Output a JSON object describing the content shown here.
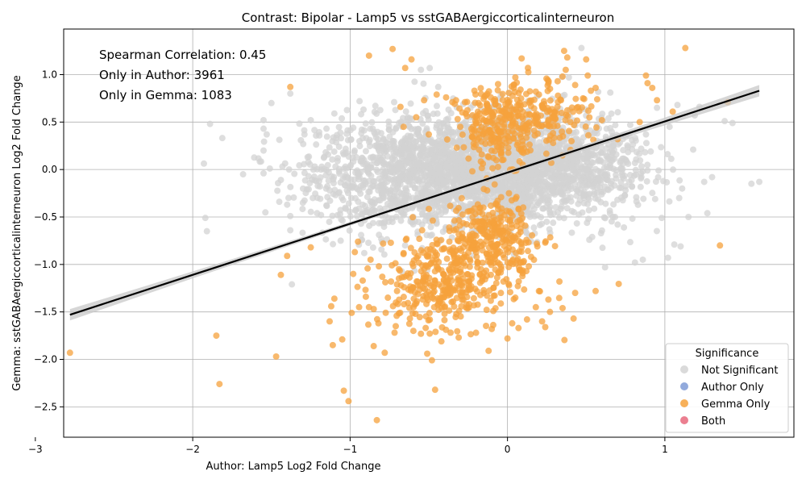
{
  "chart_data": {
    "type": "scatter",
    "title": "Contrast: Bipolar - Lamp5 vs sstGABAergiccorticalinterneuron",
    "xlabel": "Author: Lamp5 Log2 Fold Change",
    "ylabel": "Gemma: sstGABAergiccorticalinterneuron Log2 Fold Change",
    "xlim": [
      -2.82,
      1.82
    ],
    "ylim": [
      -2.82,
      1.48
    ],
    "xticks": [
      -3,
      -2,
      -1,
      0,
      1
    ],
    "xtick_labels": [
      "−3",
      "−2",
      "−1",
      "0",
      "1"
    ],
    "yticks": [
      -2.5,
      -2.0,
      -1.5,
      -1.0,
      -0.5,
      0.0,
      0.5,
      1.0
    ],
    "ytick_labels": [
      "−2.5",
      "−2.0",
      "−1.5",
      "−1.0",
      "−0.5",
      "0.0",
      "0.5",
      "1.0"
    ],
    "grid": true,
    "annotations": [
      "Spearman Correlation: 0.45",
      "Only in Author: 3961",
      "Only in Gemma: 1083"
    ],
    "regression": {
      "x": [
        -2.78,
        1.6
      ],
      "y": [
        -1.53,
        0.83
      ],
      "ci_halfwidth_end": 0.06,
      "ci_halfwidth_mid": 0.02
    },
    "legend": {
      "title": "Significance",
      "placement": "lower-right",
      "entries": [
        {
          "label": "Not Significant",
          "color": "#d3d3d3"
        },
        {
          "label": "Author Only",
          "color": "#7f9bd6"
        },
        {
          "label": "Gemma Only",
          "color": "#f6a23c"
        },
        {
          "label": "Both",
          "color": "#e8697c"
        }
      ]
    },
    "series": [
      {
        "name": "Gemma Only",
        "color": "#f6a23c",
        "points": [
          [
            -2.78,
            -1.93
          ],
          [
            -1.85,
            -1.75
          ],
          [
            -1.83,
            -2.26
          ],
          [
            -1.47,
            -1.97
          ],
          [
            -1.38,
            0.87
          ],
          [
            -1.4,
            -0.91
          ],
          [
            -1.44,
            -1.11
          ],
          [
            -1.25,
            -0.82
          ],
          [
            -1.12,
            -1.44
          ],
          [
            -1.11,
            -1.85
          ],
          [
            -1.1,
            -1.36
          ],
          [
            -1.05,
            -1.79
          ],
          [
            -1.04,
            -2.33
          ],
          [
            -1.01,
            -2.44
          ],
          [
            -0.99,
            -1.51
          ],
          [
            -0.88,
            1.2
          ],
          [
            -0.83,
            -2.64
          ],
          [
            -0.73,
            1.27
          ],
          [
            -0.65,
            1.07
          ],
          [
            -0.61,
            1.16
          ],
          [
            -0.46,
            -2.32
          ],
          [
            -0.48,
            -2.01
          ],
          [
            -0.88,
            -1.45
          ],
          [
            -0.85,
            -1.86
          ],
          [
            -0.78,
            -1.93
          ],
          [
            -0.71,
            -1.65
          ],
          [
            -0.62,
            -1.57
          ],
          [
            -0.55,
            -1.73
          ],
          [
            -0.51,
            -1.94
          ],
          [
            -0.42,
            -1.81
          ],
          [
            -0.31,
            -1.77
          ],
          [
            -0.2,
            -1.72
          ],
          [
            -0.12,
            -1.91
          ],
          [
            -0.1,
            -1.68
          ],
          [
            0.0,
            -1.78
          ],
          [
            0.03,
            -1.62
          ],
          [
            0.07,
            -1.67
          ],
          [
            0.22,
            -1.6
          ],
          [
            0.24,
            -1.66
          ],
          [
            0.18,
            -1.45
          ],
          [
            0.27,
            -1.5
          ],
          [
            0.35,
            -1.46
          ],
          [
            0.42,
            -1.57
          ],
          [
            0.56,
            -1.28
          ],
          [
            0.43,
            -1.3
          ],
          [
            0.33,
            -1.18
          ],
          [
            0.26,
            -1.37
          ],
          [
            0.2,
            -1.28
          ],
          [
            0.12,
            -1.07
          ],
          [
            0.15,
            -0.92
          ],
          [
            0.09,
            -0.82
          ],
          [
            0.19,
            -0.81
          ],
          [
            0.24,
            -0.77
          ],
          [
            0.05,
            -0.72
          ],
          [
            0.34,
            0.73
          ],
          [
            0.35,
            0.98
          ],
          [
            0.37,
            1.05
          ],
          [
            0.38,
            1.18
          ],
          [
            0.36,
            1.25
          ],
          [
            0.43,
            0.89
          ],
          [
            0.48,
            0.75
          ],
          [
            0.51,
            0.99
          ],
          [
            0.5,
            1.16
          ],
          [
            0.56,
            0.86
          ],
          [
            0.53,
            0.83
          ],
          [
            0.57,
            0.74
          ],
          [
            0.6,
            0.52
          ],
          [
            0.44,
            0.65
          ],
          [
            0.26,
            0.91
          ],
          [
            0.2,
            0.79
          ],
          [
            0.13,
            1.07
          ],
          [
            0.09,
            1.17
          ],
          [
            0.05,
            0.97
          ],
          [
            0.04,
            0.86
          ],
          [
            -0.02,
            0.6
          ],
          [
            -0.06,
            0.9
          ],
          [
            -0.13,
            0.67
          ],
          [
            -0.21,
            0.83
          ],
          [
            -0.27,
            0.71
          ],
          [
            -0.35,
            0.71
          ],
          [
            -0.39,
            0.76
          ],
          [
            -0.45,
            0.79
          ],
          [
            -0.53,
            0.73
          ],
          [
            -0.58,
            0.55
          ],
          [
            -0.66,
            0.45
          ],
          [
            -0.68,
            0.66
          ],
          [
            0.88,
            0.99
          ],
          [
            0.89,
            0.91
          ],
          [
            0.92,
            0.86
          ],
          [
            0.95,
            0.73
          ],
          [
            1.05,
            0.61
          ],
          [
            1.13,
            1.28
          ],
          [
            1.35,
            -0.8
          ],
          [
            1.4,
            0.71
          ],
          [
            0.84,
            0.5
          ],
          [
            0.7,
            0.32
          ],
          [
            -0.95,
            -0.76
          ],
          [
            -0.87,
            -0.95
          ],
          [
            -0.92,
            -1.17
          ],
          [
            -0.9,
            -1.34
          ],
          [
            -0.85,
            -1.47
          ],
          [
            -0.82,
            -1.62
          ],
          [
            -0.76,
            -1.35
          ],
          [
            -0.74,
            -1.18
          ],
          [
            -0.69,
            -1.05
          ],
          [
            -0.66,
            -0.88
          ],
          [
            -0.6,
            -1.24
          ],
          [
            -0.58,
            -1.41
          ],
          [
            -0.52,
            -1.01
          ],
          [
            -0.49,
            -0.84
          ],
          [
            -0.46,
            -1.2
          ],
          [
            -0.43,
            -1.36
          ],
          [
            -0.4,
            -1.52
          ],
          [
            -0.36,
            -1.3
          ],
          [
            -0.33,
            -0.97
          ],
          [
            -0.29,
            -1.1
          ],
          [
            -0.26,
            -1.42
          ],
          [
            -0.23,
            -1.23
          ],
          [
            -0.19,
            -0.99
          ],
          [
            -0.16,
            -1.15
          ],
          [
            -0.13,
            -1.33
          ],
          [
            -0.09,
            -1.49
          ],
          [
            -0.07,
            -0.89
          ],
          [
            -0.04,
            -1.05
          ],
          [
            0.01,
            -1.22
          ],
          [
            0.05,
            -1.35
          ],
          [
            0.08,
            -0.98
          ],
          [
            -0.98,
            -1.1
          ],
          [
            -1.13,
            -1.6
          ],
          [
            -0.97,
            -0.87
          ],
          [
            -0.79,
            -0.78
          ],
          [
            -0.56,
            -0.73
          ],
          [
            -0.34,
            -0.64
          ],
          [
            -0.18,
            -0.56
          ],
          [
            -0.02,
            -0.48
          ],
          [
            0.1,
            -0.4
          ],
          [
            -0.5,
            0.37
          ],
          [
            -0.3,
            0.45
          ],
          [
            -0.15,
            0.52
          ],
          [
            0.0,
            0.35
          ],
          [
            0.17,
            0.41
          ],
          [
            0.29,
            0.28
          ],
          [
            0.4,
            0.5
          ],
          [
            0.3,
            0.6
          ]
        ],
        "dense_regions": [
          {
            "cx": -0.45,
            "cy": -1.2,
            "sx": 0.18,
            "sy": 0.22,
            "n": 260
          },
          {
            "cx": -0.15,
            "cy": -0.95,
            "sx": 0.2,
            "sy": 0.28,
            "n": 180
          },
          {
            "cx": -0.1,
            "cy": -0.65,
            "sx": 0.1,
            "sy": 0.18,
            "n": 160
          },
          {
            "cx": -0.05,
            "cy": 0.45,
            "sx": 0.13,
            "sy": 0.2,
            "n": 240
          },
          {
            "cx": 0.25,
            "cy": 0.6,
            "sx": 0.14,
            "sy": 0.18,
            "n": 120
          }
        ]
      },
      {
        "name": "Not Significant",
        "color": "#d3d3d3",
        "points": [
          [
            -1.92,
            -0.51
          ],
          [
            -1.91,
            -0.65
          ],
          [
            -1.89,
            0.48
          ],
          [
            -1.68,
            -0.05
          ],
          [
            -1.55,
            -0.04
          ],
          [
            -1.55,
            0.2
          ],
          [
            -1.55,
            0.43
          ],
          [
            -1.55,
            0.52
          ],
          [
            -1.53,
            0.37
          ],
          [
            -1.51,
            0.01
          ],
          [
            -1.5,
            0.7
          ],
          [
            -1.45,
            -0.34
          ],
          [
            -1.44,
            -0.11
          ],
          [
            -1.4,
            -0.37
          ],
          [
            -1.38,
            -0.49
          ],
          [
            -1.38,
            -0.64
          ],
          [
            -1.37,
            -1.21
          ],
          [
            -1.38,
            0.8
          ],
          [
            -1.3,
            -0.35
          ],
          [
            -1.29,
            0.37
          ],
          [
            -1.27,
            0.13
          ],
          [
            -1.25,
            0.52
          ],
          [
            -1.21,
            -0.46
          ],
          [
            -1.18,
            0.03
          ],
          [
            -1.15,
            0.43
          ],
          [
            -1.13,
            -0.22
          ],
          [
            -1.1,
            0.59
          ],
          [
            -1.07,
            0.24
          ],
          [
            -1.06,
            -0.75
          ],
          [
            -1.03,
            0.03
          ],
          [
            -0.98,
            0.44
          ],
          [
            -0.94,
            0.72
          ],
          [
            -0.93,
            -0.69
          ],
          [
            -0.91,
            -0.88
          ],
          [
            -0.55,
            1.05
          ],
          [
            0.39,
            0.97
          ],
          [
            0.47,
            1.28
          ],
          [
            0.52,
            -0.74
          ],
          [
            0.57,
            0.38
          ],
          [
            0.62,
            -1.03
          ],
          [
            0.7,
            -0.58
          ],
          [
            0.74,
            -0.61
          ],
          [
            0.78,
            0.47
          ],
          [
            0.81,
            -0.98
          ],
          [
            0.86,
            -0.95
          ],
          [
            0.88,
            0.37
          ],
          [
            0.91,
            0.19
          ],
          [
            0.96,
            -0.01
          ],
          [
            0.98,
            -0.51
          ],
          [
            1.03,
            0.45
          ],
          [
            1.06,
            -0.79
          ],
          [
            1.08,
            0.68
          ],
          [
            1.1,
            -0.81
          ],
          [
            1.15,
            -0.5
          ],
          [
            1.18,
            0.21
          ],
          [
            1.22,
            0.66
          ],
          [
            1.25,
            -0.13
          ],
          [
            1.27,
            -0.46
          ],
          [
            1.3,
            -0.08
          ],
          [
            1.38,
            0.51
          ],
          [
            1.43,
            0.49
          ],
          [
            1.55,
            -0.15
          ],
          [
            1.6,
            -0.13
          ],
          [
            1.11,
            -0.2
          ],
          [
            1.02,
            -0.93
          ],
          [
            0.95,
            0.65
          ],
          [
            1.19,
            0.57
          ],
          [
            0.67,
            -0.5
          ],
          [
            0.63,
            0.43
          ],
          [
            -0.72,
            0.71
          ],
          [
            -0.44,
            0.87
          ],
          [
            -0.28,
            0.69
          ]
        ],
        "dense_regions": [
          {
            "cx": -0.35,
            "cy": 0.02,
            "sx": 0.42,
            "sy": 0.27,
            "n": 1300
          },
          {
            "cx": 0.1,
            "cy": 0.0,
            "sx": 0.3,
            "sy": 0.3,
            "n": 900
          },
          {
            "cx": -0.7,
            "cy": -0.15,
            "sx": 0.3,
            "sy": 0.3,
            "n": 400
          },
          {
            "cx": 0.45,
            "cy": 0.05,
            "sx": 0.25,
            "sy": 0.28,
            "n": 350
          }
        ]
      }
    ]
  }
}
